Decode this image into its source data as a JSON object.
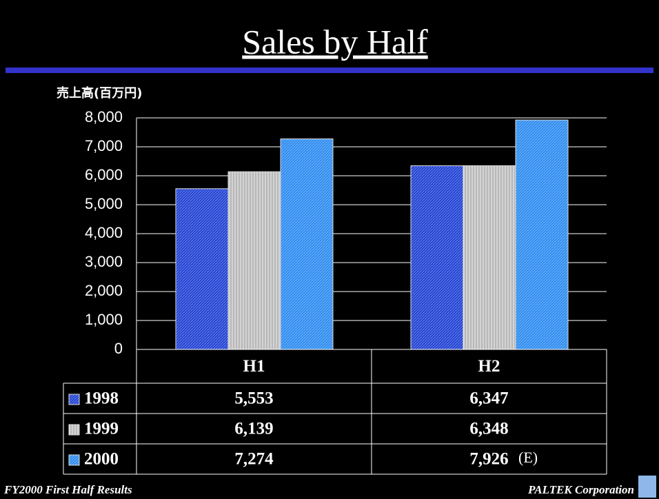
{
  "chart_data": {
    "type": "bar",
    "title": "Sales by Half",
    "y_label": "売上高(百万円)",
    "categories": [
      "H1",
      "H2"
    ],
    "series": [
      {
        "name": "1998",
        "color": "#2142d4",
        "values": [
          5553,
          6347
        ],
        "value_labels": [
          "5,553",
          "6,347"
        ]
      },
      {
        "name": "1999",
        "color": "#b8b8b8",
        "values": [
          6139,
          6348
        ],
        "value_labels": [
          "6,139",
          "6,348"
        ]
      },
      {
        "name": "2000",
        "color": "#2e8cf0",
        "values": [
          7274,
          7926
        ],
        "value_labels": [
          "7,274",
          "7,926"
        ]
      }
    ],
    "annotation": "(E)",
    "ylim": [
      0,
      8000
    ],
    "yticks": [
      0,
      {
        "value": 1000,
        "label": "1,000"
      },
      {
        "value": 2000,
        "label": "2,000"
      },
      {
        "value": 3000,
        "label": "3,000"
      },
      {
        "value": 4000,
        "label": "4,000"
      },
      {
        "value": 5000,
        "label": "5,000"
      },
      {
        "value": 6000,
        "label": "6,000"
      },
      {
        "value": 7000,
        "label": "7,000"
      },
      {
        "value": 8000,
        "label": "8,000"
      }
    ],
    "grid": true
  },
  "footer": {
    "left": "FY2000 First Half Results",
    "right": "PALTEK Corporation"
  }
}
